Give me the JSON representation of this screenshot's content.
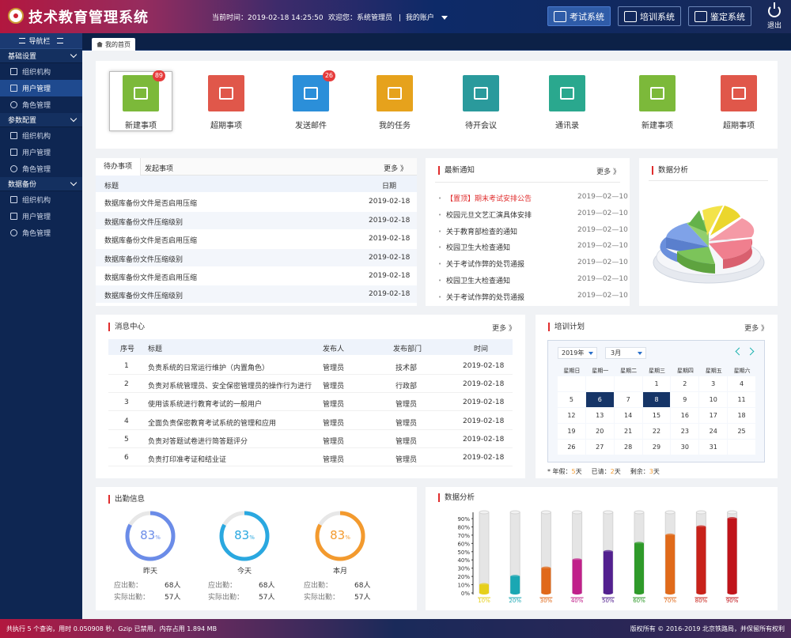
{
  "header": {
    "system_title": "技术教育管理系统",
    "current_time": "当前时间：2019-02-18 14:25:50",
    "welcome": "欢迎您：系统管理员",
    "divider": "|",
    "my_account": "我的账户",
    "buttons": [
      {
        "label": "考试系统",
        "icon": "exam-icon",
        "active": true
      },
      {
        "label": "培训系统",
        "icon": "training-icon",
        "active": false
      },
      {
        "label": "鉴定系统",
        "icon": "appraisal-icon",
        "active": false
      }
    ],
    "logout": "退出"
  },
  "sidebar": {
    "title": "导航栏",
    "groups": [
      {
        "label": "基础设置",
        "items": [
          {
            "label": "组织机构",
            "icon": "org-icon",
            "selected": false
          },
          {
            "label": "用户管理",
            "icon": "book-icon",
            "selected": true
          },
          {
            "label": "角色管理",
            "icon": "role-icon",
            "selected": false
          }
        ]
      },
      {
        "label": "参数配置",
        "items": [
          {
            "label": "组织机构",
            "icon": "org-icon",
            "selected": false
          },
          {
            "label": "用户管理",
            "icon": "users-icon",
            "selected": false
          },
          {
            "label": "角色管理",
            "icon": "role-icon",
            "selected": false
          }
        ]
      },
      {
        "label": "数据备份",
        "items": [
          {
            "label": "组织机构",
            "icon": "org-icon",
            "selected": false
          },
          {
            "label": "用户管理",
            "icon": "users-icon",
            "selected": false
          },
          {
            "label": "角色管理",
            "icon": "role-icon",
            "selected": false
          }
        ]
      }
    ]
  },
  "tabs": {
    "home": "我的首页"
  },
  "quick": [
    {
      "label": "新建事项",
      "color": "#7cb93a",
      "badge": "89",
      "selected": true
    },
    {
      "label": "超期事项",
      "color": "#e0574a",
      "badge": "",
      "selected": false
    },
    {
      "label": "发送邮件",
      "color": "#2b8fd9",
      "badge": "26",
      "selected": false
    },
    {
      "label": "我的任务",
      "color": "#e6a21c",
      "badge": "",
      "selected": false
    },
    {
      "label": "待开会议",
      "color": "#2a9a9c",
      "badge": "",
      "selected": false
    },
    {
      "label": "通讯录",
      "color": "#2aa88e",
      "badge": "",
      "selected": false
    },
    {
      "label": "新建事项",
      "color": "#7cb93a",
      "badge": "",
      "selected": false
    },
    {
      "label": "超期事项",
      "color": "#e0574a",
      "badge": "",
      "selected": false
    }
  ],
  "todo": {
    "tab1": "待办事项",
    "tab2": "发起事项",
    "more": "更多 》",
    "col_title": "标题",
    "col_date": "日期",
    "rows": [
      {
        "title": "数据库备份文件是否启用压缩",
        "date": "2019-02-18"
      },
      {
        "title": "数据库备份文件压缩级别",
        "date": "2019-02-18"
      },
      {
        "title": "数据库备份文件是否启用压缩",
        "date": "2019-02-18"
      },
      {
        "title": "数据库备份文件压缩级别",
        "date": "2019-02-18"
      },
      {
        "title": "数据库备份文件是否启用压缩",
        "date": "2019-02-18"
      },
      {
        "title": "数据库备份文件压缩级别",
        "date": "2019-02-18"
      }
    ]
  },
  "notice": {
    "title": "最新通知",
    "more": "更多 》",
    "items": [
      {
        "tag": "【置顶】",
        "text": "期末考试安排公告",
        "date": "2019—02—10",
        "highlight": true
      },
      {
        "tag": "",
        "text": "校园元旦文艺汇演具体安排",
        "date": "2019—02—10",
        "highlight": false
      },
      {
        "tag": "",
        "text": "关于教育部检查的通知",
        "date": "2019—02—10",
        "highlight": false
      },
      {
        "tag": "",
        "text": "校园卫生大检查通知",
        "date": "2019—02—10",
        "highlight": false
      },
      {
        "tag": "",
        "text": "关于考试作弊的处罚通报",
        "date": "2019—02—10",
        "highlight": false
      },
      {
        "tag": "",
        "text": "校园卫生大检查通知",
        "date": "2019—02—10",
        "highlight": false
      },
      {
        "tag": "",
        "text": "关于考试作弊的处罚通报",
        "date": "2019—02—10",
        "highlight": false
      }
    ]
  },
  "pie_panel": {
    "title": "数据分析"
  },
  "messages": {
    "title": "消息中心",
    "more": "更多 》",
    "headers": [
      "序号",
      "标题",
      "发布人",
      "发布部门",
      "时间"
    ],
    "rows": [
      [
        "1",
        "负责系统的日常运行维护（内置角色）",
        "管理员",
        "技术部",
        "2019-02-18"
      ],
      [
        "2",
        "负责对系统管理员、安全保密管理员的操作行为进行",
        "管理员",
        "行政部",
        "2019-02-18"
      ],
      [
        "3",
        "使用该系统进行教育考试的一般用户",
        "管理员",
        "管理员",
        "2019-02-18"
      ],
      [
        "4",
        "全面负责保密教育考试系统的管理和应用",
        "管理员",
        "管理员",
        "2019-02-18"
      ],
      [
        "5",
        "负责对答题试卷进行简答题评分",
        "管理员",
        "管理员",
        "2019-02-18"
      ],
      [
        "6",
        "负责打印准考证和结业证",
        "管理员",
        "管理员",
        "2019-02-18"
      ]
    ]
  },
  "training": {
    "title": "培训计划",
    "more": "更多 》",
    "year": "2019年",
    "month": "3月",
    "weekdays": [
      "星期日",
      "星期一",
      "星期二",
      "星期三",
      "星期四",
      "星期五",
      "星期六"
    ],
    "weeks": [
      [
        "",
        "",
        "",
        "1",
        "2",
        "3",
        "4"
      ],
      [
        "5",
        "6",
        "7",
        "8",
        "9",
        "10",
        "11"
      ],
      [
        "12",
        "13",
        "14",
        "15",
        "16",
        "17",
        "18"
      ],
      [
        "19",
        "20",
        "21",
        "22",
        "23",
        "24",
        "25"
      ],
      [
        "26",
        "27",
        "28",
        "29",
        "30",
        "31",
        ""
      ]
    ],
    "selected_days": [
      "6",
      "8"
    ],
    "legend": [
      {
        "prefix": "* 年假：",
        "num": "5",
        "unit": "天"
      },
      {
        "prefix": "已请：",
        "num": "2",
        "unit": "天"
      },
      {
        "prefix": "剩余：",
        "num": "3",
        "unit": "天"
      }
    ]
  },
  "attendance": {
    "title": "出勤信息",
    "due_label": "应出勤：",
    "actual_label": "实际出勤：",
    "items": [
      {
        "percent": "83",
        "unit": "%",
        "ratio": 0.83,
        "color": "#6b8ce8",
        "period": "昨天",
        "due": "68人",
        "actual": "57人"
      },
      {
        "percent": "83",
        "unit": "%",
        "ratio": 0.83,
        "color": "#2aa8e0",
        "period": "今天",
        "due": "68人",
        "actual": "57人"
      },
      {
        "percent": "83",
        "unit": "%",
        "ratio": 0.83,
        "color": "#f39a2e",
        "period": "本月",
        "due": "68人",
        "actual": "57人"
      }
    ]
  },
  "chart_data": {
    "type": "bar",
    "title": "数据分析",
    "categories": [
      "10%",
      "20%",
      "30%",
      "40%",
      "50%",
      "60%",
      "70%",
      "80%",
      "90%"
    ],
    "values": [
      10,
      20,
      30,
      40,
      50,
      60,
      70,
      80,
      90
    ],
    "colors": [
      "#e6cf1a",
      "#1aa7b3",
      "#e0691a",
      "#c0208a",
      "#52208f",
      "#2f9a2a",
      "#e06a1a",
      "#c8221a",
      "#c0141a"
    ],
    "y_ticks": [
      "0%",
      "10%",
      "20%",
      "30%",
      "40%",
      "50%",
      "60%",
      "70%",
      "80%",
      "90%"
    ],
    "ylim": [
      0,
      100
    ]
  },
  "footer": {
    "left": "共执行 5 个查询，用时 0.050908 秒，Gzip 已禁用，内存占用 1.894 MB",
    "right": "版权所有 © 2016-2019 北京铁路局，并保留所有权利"
  }
}
